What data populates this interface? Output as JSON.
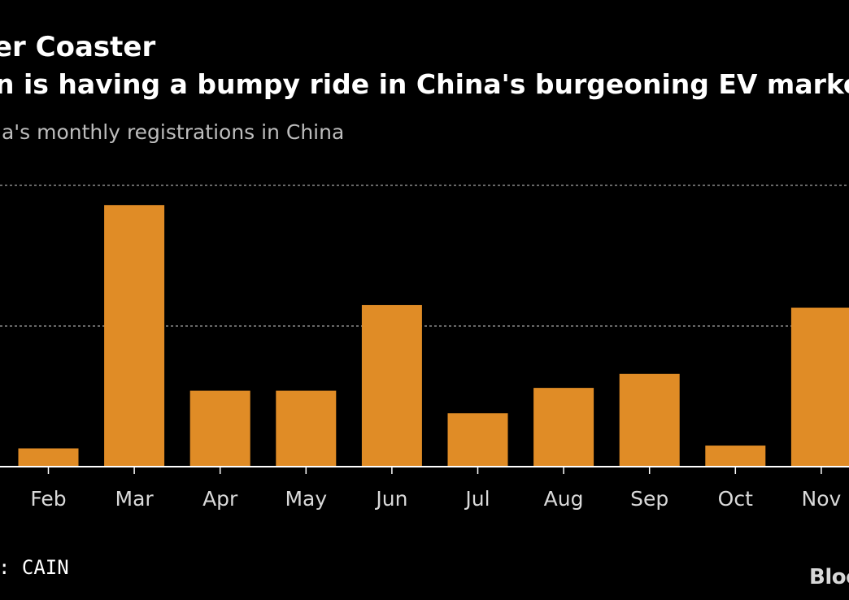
{
  "title": "er Coaster",
  "subtitle": "n is having a bumpy ride in China's burgeoning EV market",
  "caption": "la's monthly registrations in China",
  "source": ": CAIN",
  "logo_text": "Bloo",
  "colors": {
    "background": "#000000",
    "bar": "#e08c26",
    "gridline": "#8a8a8a",
    "axis": "#ffffff",
    "text": "#ffffff"
  },
  "chart_data": {
    "type": "bar",
    "categories": [
      "Feb",
      "Mar",
      "Apr",
      "May",
      "Jun",
      "Jul",
      "Aug",
      "Sep",
      "Oct",
      "Nov"
    ],
    "values": [
      0.13,
      1.86,
      0.54,
      0.54,
      1.15,
      0.38,
      0.56,
      0.66,
      0.15,
      1.13
    ],
    "ylim": [
      0,
      2
    ],
    "gridlines": [
      1,
      2
    ],
    "ylabel": "",
    "xlabel": "",
    "grid": true
  }
}
